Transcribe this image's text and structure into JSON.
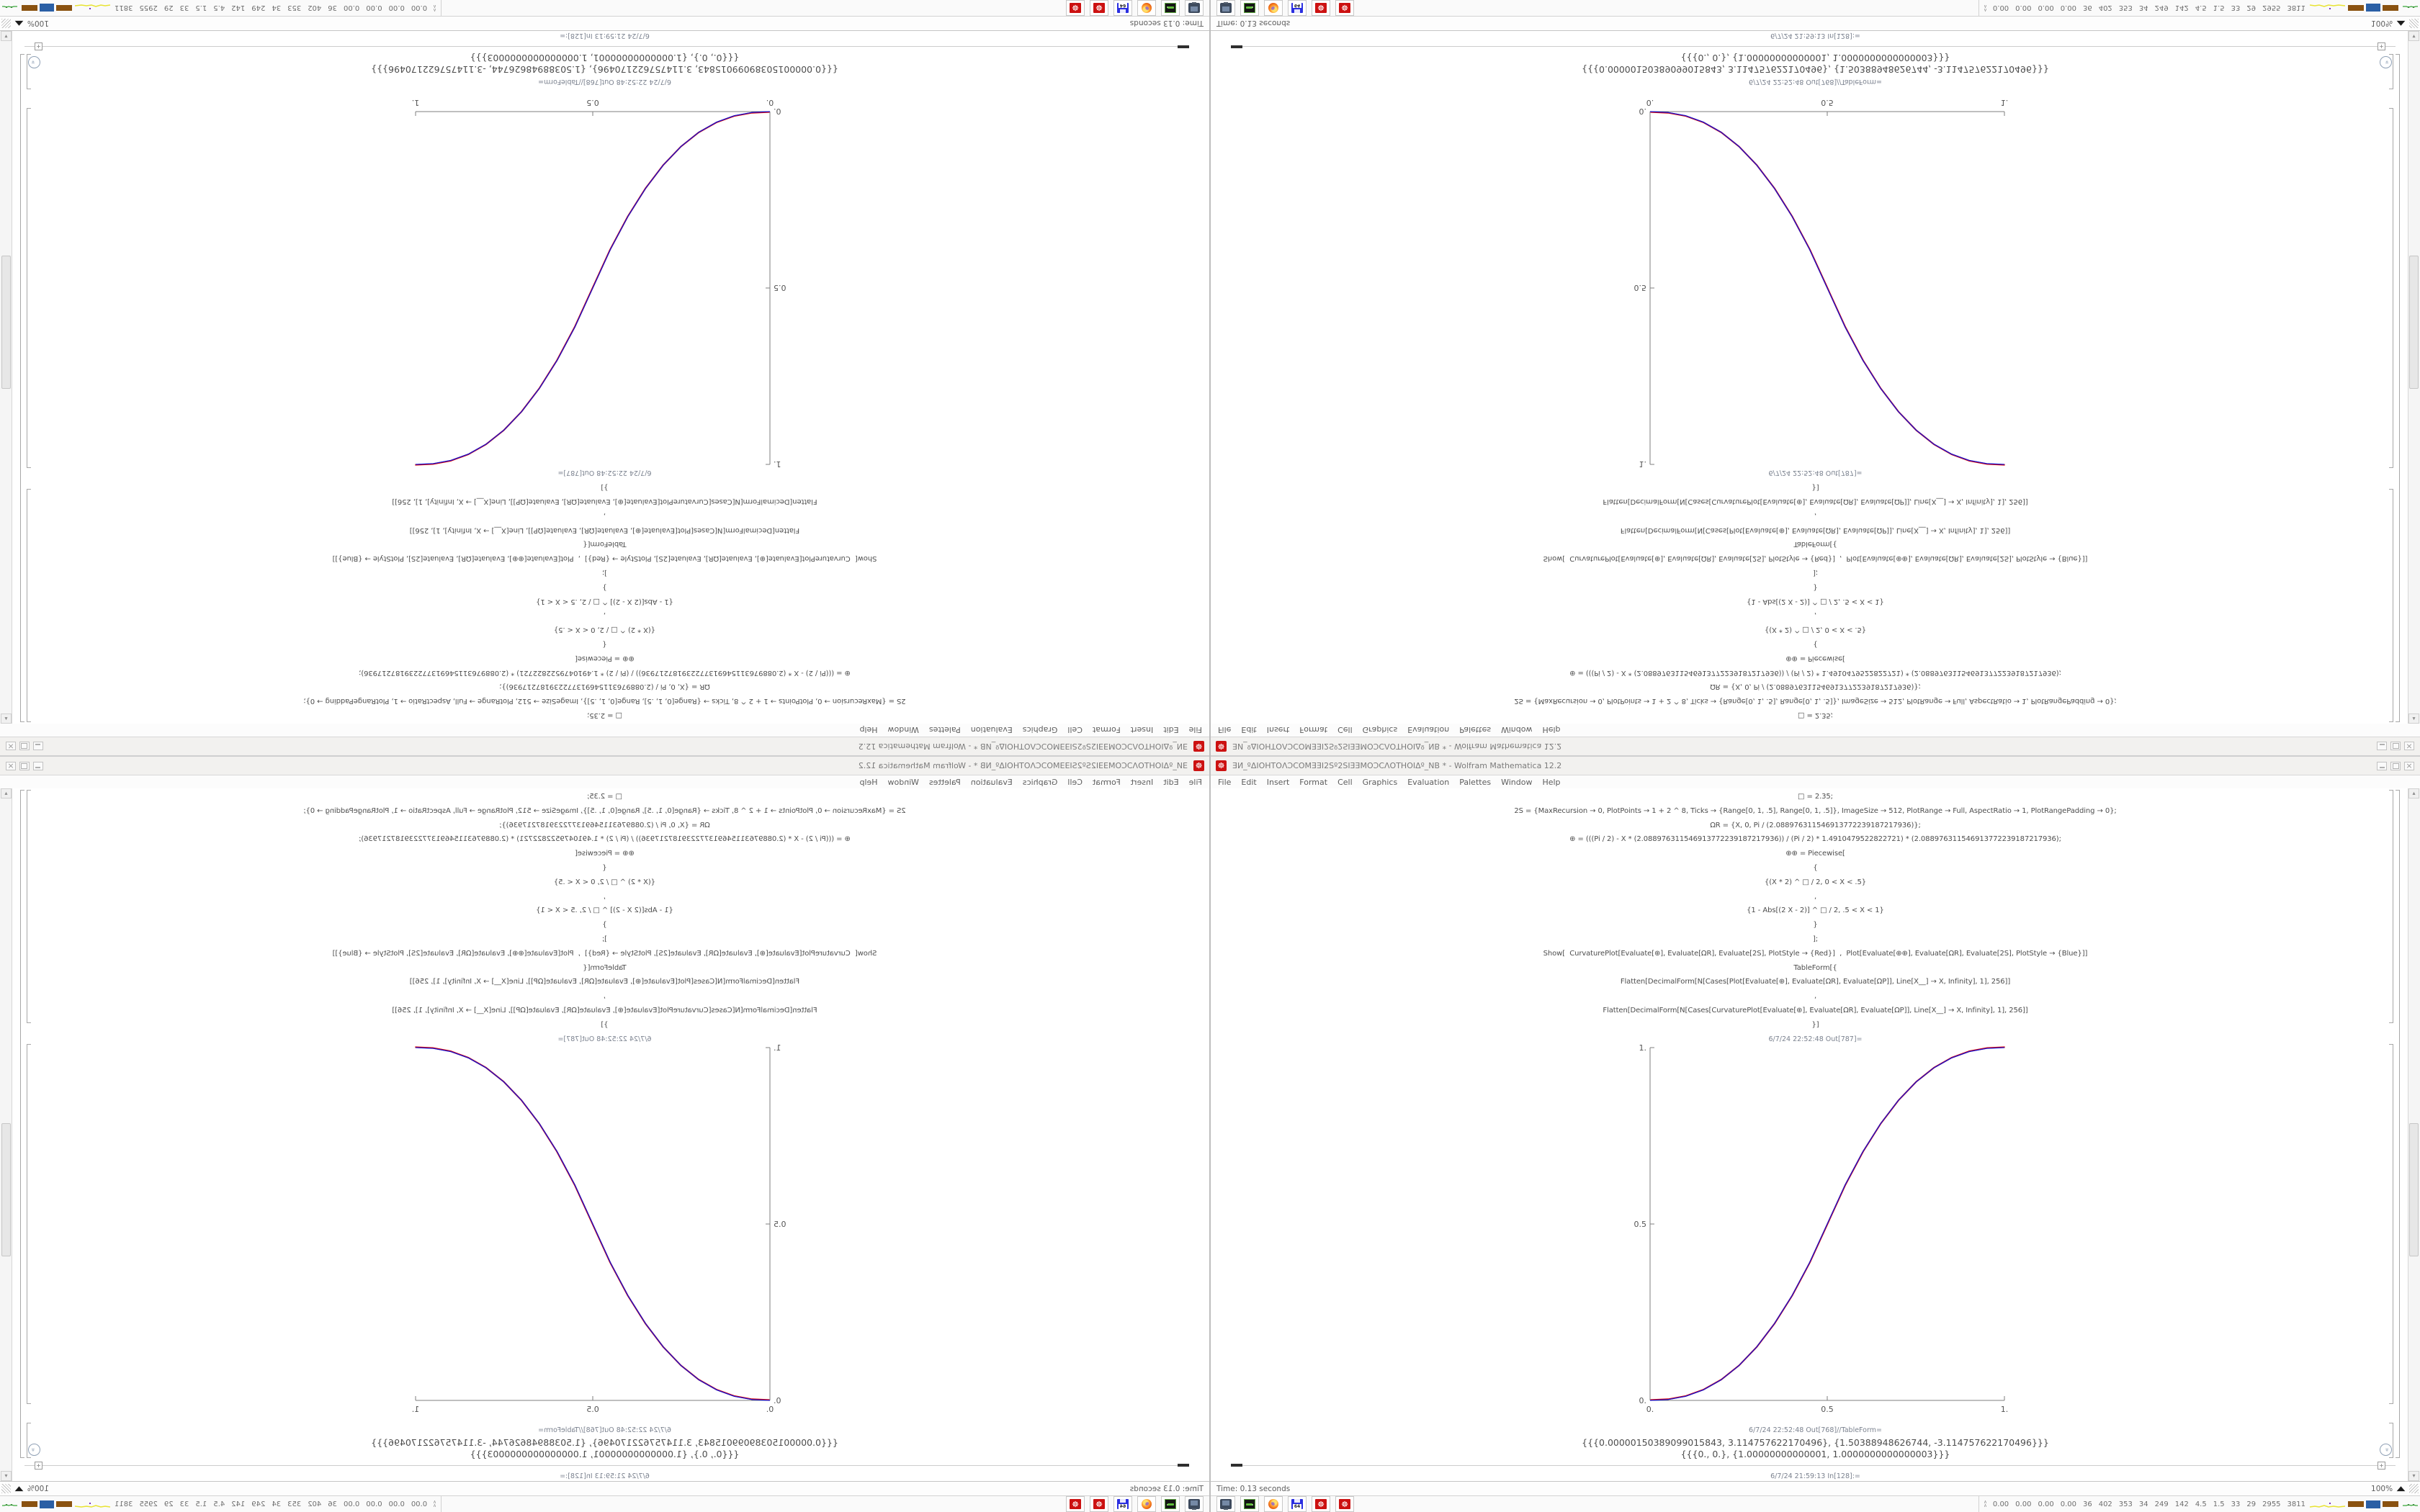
{
  "window": {
    "title": "ƎИ_ºΔΙΟΗΤΟΛƆCOMƎƎΙ2Sº2SΙƎƎMOƆCΛΟΤΗΟΙΔº_NB * - Wolfram Mathematica 12.2",
    "menu": [
      "File",
      "Edit",
      "Insert",
      "Format",
      "Cell",
      "Graphics",
      "Evaluation",
      "Palettes",
      "Window",
      "Help"
    ],
    "window_buttons": [
      "minimize",
      "maximize",
      "close"
    ],
    "app_icon": "red-gear-icon",
    "gear_glyph": "☸"
  },
  "notebook": {
    "input_lines": [
      "□ = 2.35;",
      "2S = {MaxRecursion → 0, PlotPoints → 1 + 2 ^ 8, Ticks → {Range[0, 1, .5], Range[0, 1, .5]}, ImageSize → 512, PlotRange → Full, AspectRatio → 1, PlotRangePadding → 0};",
      "ΩR = {X, 0, Pi / (2.088976311546913772239187217936)};",
      "⊕ = (((Pi / 2) - X * (2.088976311546913772239187217936)) / (Pi / 2) * 1.4910479522822721) * (2.088976311546913772239187217936);",
      "⊕⊕ = Piecewise[",
      "{",
      "{(X * 2) ^ □ / 2, 0 < X < .5}",
      ",",
      "{1 - Abs[(2 X - 2)] ^ □ / 2, .5 < X < 1}",
      "}",
      "];",
      "Show[  CurvaturePlot[Evaluate[⊕], Evaluate[ΩR], Evaluate[2S], PlotStyle → {Red}]  ,  Plot[Evaluate[⊕⊕], Evaluate[ΩR], Evaluate[2S], PlotStyle → {Blue}]]",
      "TableForm[{",
      "Flatten[DecimalForm[N[Cases[Plot[Evaluate[⊕], Evaluate[ΩR], Evaluate[ΩP]], Line[X__] → X, Infinity], 1], 256]]",
      ",",
      "Flatten[DecimalForm[N[Cases[CurvaturePlot[Evaluate[⊕], Evaluate[ΩR], Evaluate[ΩP]], Line[X__] → X, Infinity], 1], 256]]",
      "}]"
    ],
    "out_label_plot": "6/7/24 22:52:48 Out[787]=",
    "out_label_table": "6/7/24 22:52:48 Out[768]//TableForm=",
    "table_rows": [
      "{{{0.00000150389099015843, 3.114757622170496}, {1.50388948626744, -3.114757622170496}}}",
      "{{{0., 0.}, {1.00000000000001, 1.0000000000000003}}}"
    ],
    "next_cell_label": "6/7/24 21:59:13 In[128]:=",
    "status_left": "Time: 0.13 seconds",
    "zoom_level": "100%",
    "collapse_glyph": "»",
    "scroll_up_glyph": "▴",
    "scroll_down_glyph": "▾",
    "insert_plus_glyph": "+"
  },
  "chart_data": {
    "type": "line",
    "title": "Out[787] smoothstep curve (CurvaturePlot red + Plot blue, overlapping)",
    "xlabel": "",
    "ylabel": "",
    "xlim": [
      0,
      1
    ],
    "ylim": [
      0,
      1
    ],
    "x_ticks": [
      0,
      0.5,
      1
    ],
    "x_tick_labels": [
      "0.",
      "0.5",
      "1."
    ],
    "y_ticks": [
      0,
      0.5,
      1
    ],
    "y_tick_labels": [
      "0.",
      "0.5",
      "1."
    ],
    "grid": false,
    "legend_position": "none",
    "series": [
      {
        "name": "CurvaturePlot Evaluate[⊕] (Red)",
        "color": "#e00000",
        "points": [
          [
            0,
            0
          ],
          [
            0.05,
            0.0022
          ],
          [
            0.1,
            0.0114
          ],
          [
            0.15,
            0.0295
          ],
          [
            0.2,
            0.058
          ],
          [
            0.25,
            0.098
          ],
          [
            0.3,
            0.1505
          ],
          [
            0.35,
            0.2163
          ],
          [
            0.4,
            0.296
          ],
          [
            0.45,
            0.3903
          ],
          [
            0.5,
            0.5
          ],
          [
            0.55,
            0.6097
          ],
          [
            0.6,
            0.704
          ],
          [
            0.65,
            0.7837
          ],
          [
            0.7,
            0.8495
          ],
          [
            0.75,
            0.902
          ],
          [
            0.8,
            0.942
          ],
          [
            0.85,
            0.9705
          ],
          [
            0.9,
            0.9886
          ],
          [
            0.95,
            0.9978
          ],
          [
            1,
            1
          ]
        ]
      },
      {
        "name": "Plot Evaluate[⊕⊕] (Blue)",
        "color": "#1414d2",
        "points": [
          [
            0,
            0
          ],
          [
            0.05,
            0.0022
          ],
          [
            0.1,
            0.0114
          ],
          [
            0.15,
            0.0295
          ],
          [
            0.2,
            0.058
          ],
          [
            0.25,
            0.098
          ],
          [
            0.3,
            0.1505
          ],
          [
            0.35,
            0.2163
          ],
          [
            0.4,
            0.296
          ],
          [
            0.45,
            0.3903
          ],
          [
            0.5,
            0.5
          ],
          [
            0.55,
            0.6097
          ],
          [
            0.6,
            0.704
          ],
          [
            0.65,
            0.7837
          ],
          [
            0.7,
            0.8495
          ],
          [
            0.75,
            0.902
          ],
          [
            0.8,
            0.942
          ],
          [
            0.85,
            0.9705
          ],
          [
            0.9,
            0.9886
          ],
          [
            0.95,
            0.9978
          ],
          [
            1,
            1
          ]
        ]
      }
    ]
  },
  "taskbar": {
    "app_icons": [
      "display-capture",
      "disk-utility",
      "firefox",
      "floppy-64",
      "settings-gear",
      "settings-gear"
    ],
    "floppy_label": "64",
    "tray_toggle_glyph": "∧",
    "tray_values": [
      "0.00",
      "0.00",
      "0.00",
      "0.00",
      "36",
      "402",
      "353",
      "34",
      "249",
      "142",
      "4.5",
      "1.5",
      "33",
      "29",
      "2955",
      "3811"
    ],
    "tray_graphs": [
      "yellow-sparkline",
      "brown-bar",
      "blue-bar",
      "brown-bar",
      "green-sparkline"
    ]
  },
  "colors": {
    "titlebar_bg": "#f2f1ef",
    "app_icon_red": "#cc1111",
    "code_text": "#4d4d4d",
    "cell_label": "#7b828f",
    "axis": "#7f7f7f",
    "curve_red": "#e00000",
    "curve_blue": "#1414d2",
    "tray_brown": "#8a5210",
    "tray_blue": "#2a5fa5",
    "tray_yellow": "#e8e332",
    "tray_green": "#3aa83a"
  }
}
